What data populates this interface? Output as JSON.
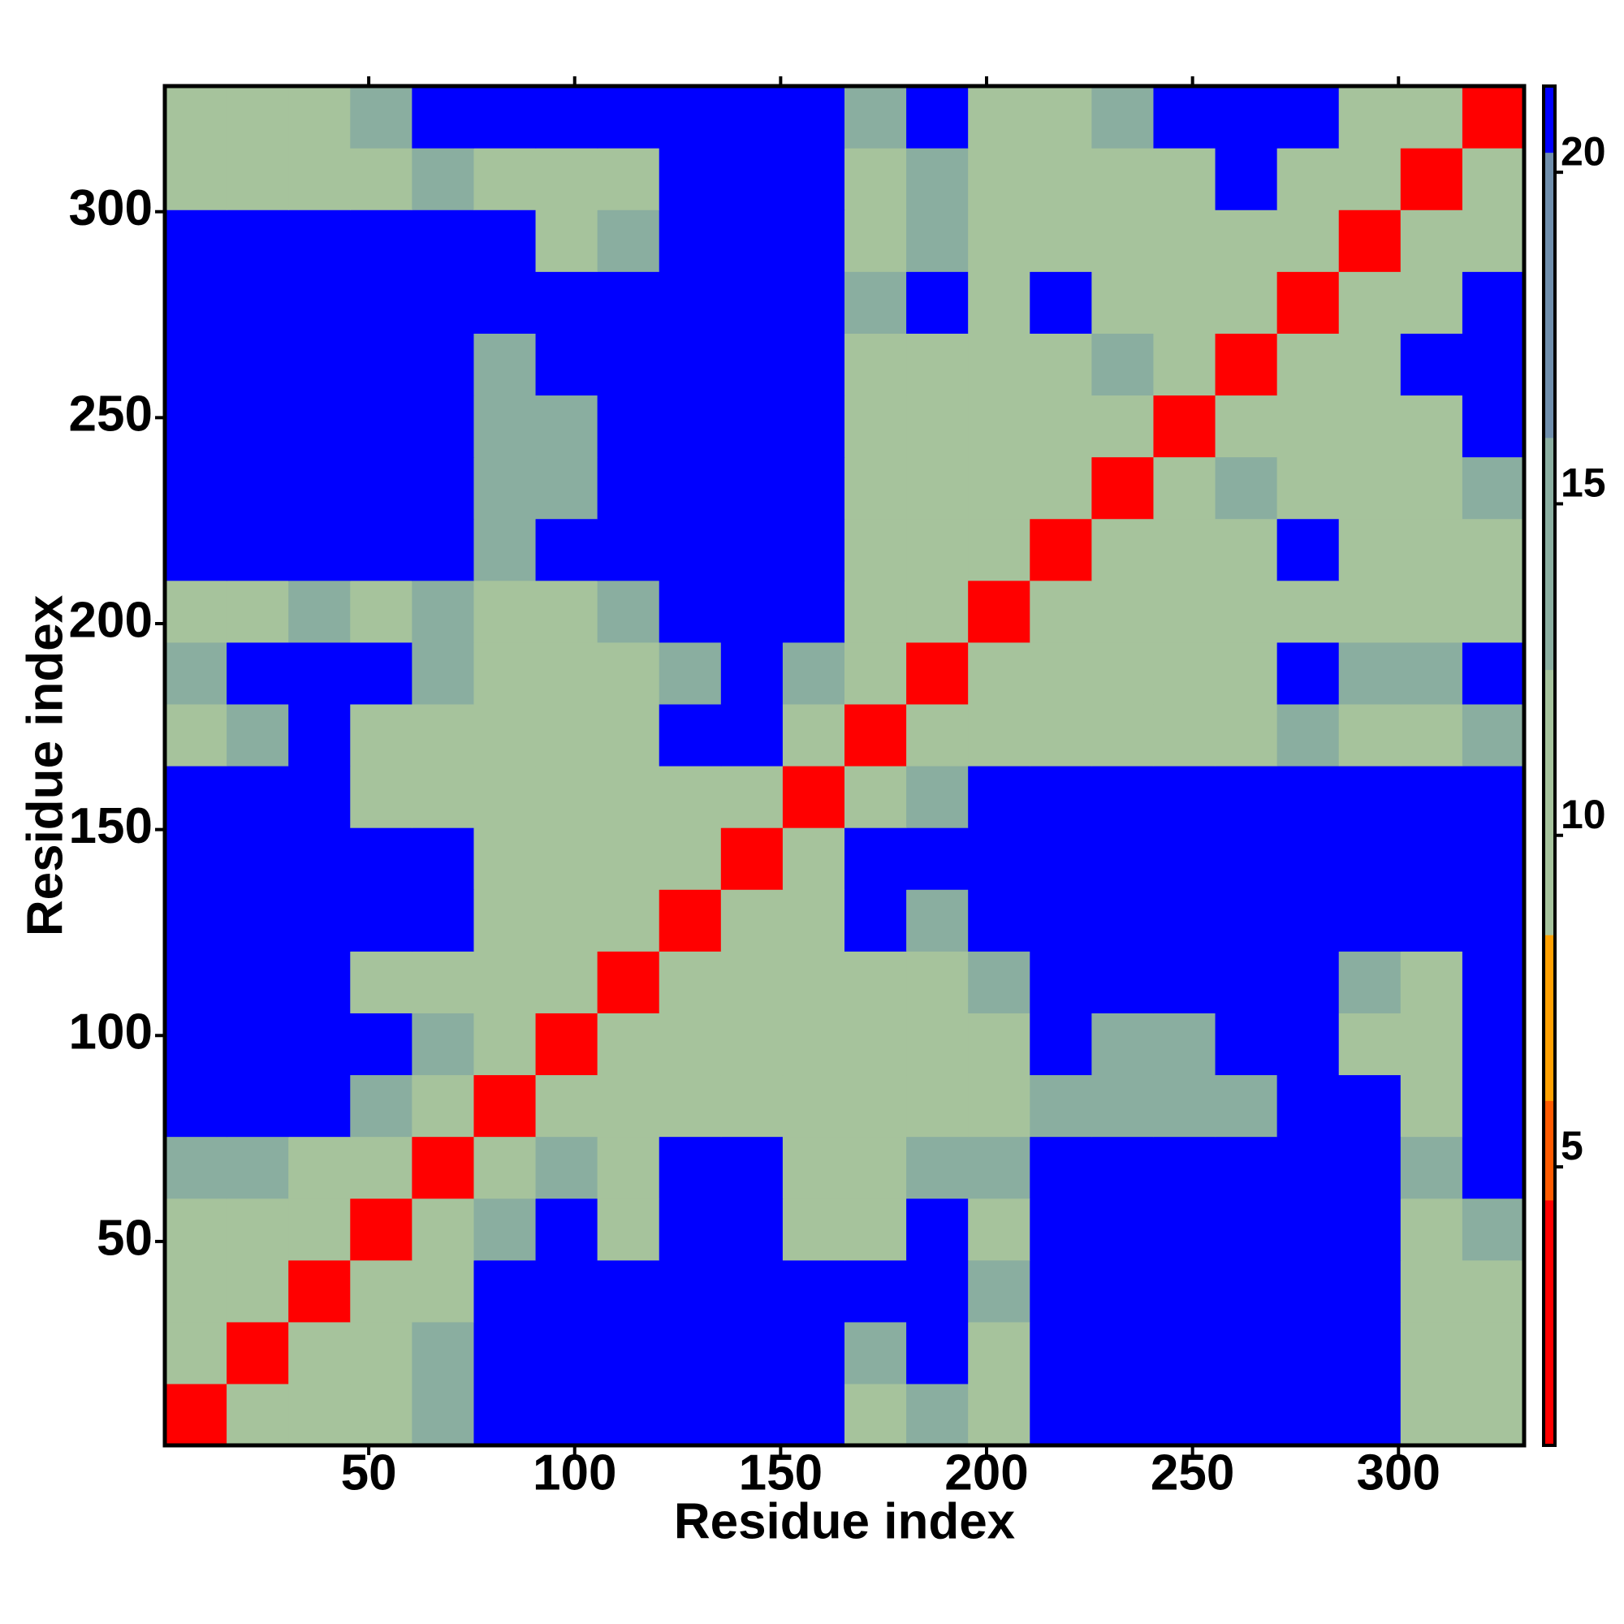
{
  "chart_data": {
    "type": "heatmap",
    "xlabel": "Residue index",
    "ylabel": "Residue index",
    "xbins": [
      0.5,
      15.5,
      30.5,
      45.5,
      60.5,
      75.5,
      90.5,
      105.5,
      120.5,
      135.5,
      150.5,
      165.5,
      180.5,
      195.5,
      210.5,
      225.5,
      240.5,
      255.5,
      270.5,
      285.5,
      300.5,
      315.5,
      330.5
    ],
    "ybins": [
      0.5,
      15.5,
      30.5,
      45.5,
      60.5,
      75.5,
      90.5,
      105.5,
      120.5,
      135.5,
      150.5,
      165.5,
      180.5,
      195.5,
      210.5,
      225.5,
      240.5,
      255.5,
      270.5,
      285.5,
      300.5,
      315.5,
      330.5
    ],
    "xlim": [
      0.5,
      330.5
    ],
    "ylim": [
      0.5,
      330.5
    ],
    "xticks": [
      50,
      100,
      150,
      200,
      250,
      300
    ],
    "yticks": [
      50,
      100,
      150,
      200,
      250,
      300
    ],
    "zlim": [
      0.8,
      21.3
    ],
    "zticks": [
      5,
      10,
      15,
      20
    ],
    "colorscale": [
      [
        0.8,
        "#ff0000"
      ],
      [
        4.5,
        "#ff5a00"
      ],
      [
        6,
        "#ffa000"
      ],
      [
        8.5,
        "#a6c39c"
      ],
      [
        12.5,
        "#8aaea0"
      ],
      [
        16,
        "#6f8eac"
      ],
      [
        20.3,
        "#0000ff"
      ]
    ],
    "z": [
      [
        3,
        10,
        11,
        12,
        14,
        21,
        21,
        21,
        21,
        21,
        21,
        12,
        13,
        12,
        21,
        21,
        21,
        21,
        21,
        21,
        12,
        12
      ],
      [
        10,
        3,
        10,
        11,
        14,
        21,
        21,
        21,
        21,
        21,
        21,
        13,
        21,
        12,
        21,
        21,
        21,
        21,
        21,
        21,
        12,
        11
      ],
      [
        11,
        10,
        3,
        10,
        12,
        21,
        21,
        21,
        21,
        21,
        21,
        21,
        21,
        13,
        21,
        21,
        21,
        21,
        21,
        21,
        12,
        12
      ],
      [
        12,
        11,
        10,
        3,
        11,
        13,
        21,
        12,
        21,
        21,
        12,
        12,
        21,
        12,
        21,
        21,
        21,
        21,
        21,
        21,
        12,
        13
      ],
      [
        14,
        14,
        12,
        11,
        3,
        11,
        13,
        11,
        21,
        21,
        11,
        11,
        13,
        13,
        21,
        21,
        21,
        21,
        21,
        21,
        13,
        21
      ],
      [
        21,
        21,
        21,
        13,
        11,
        3,
        10,
        10,
        11,
        12,
        12,
        12,
        11,
        11,
        13,
        14,
        14,
        15,
        21,
        21,
        12,
        21
      ],
      [
        21,
        21,
        21,
        21,
        13,
        10,
        3,
        10,
        12,
        12,
        12,
        12,
        12,
        12,
        21,
        13,
        15,
        21,
        21,
        12,
        12,
        21
      ],
      [
        21,
        21,
        21,
        12,
        11,
        10,
        10,
        3,
        10,
        12,
        10,
        11,
        12,
        13,
        21,
        21,
        21,
        21,
        21,
        13,
        12,
        21
      ],
      [
        21,
        21,
        21,
        21,
        21,
        11,
        12,
        10,
        3,
        10,
        10,
        21,
        13,
        21,
        21,
        21,
        21,
        21,
        21,
        21,
        21,
        21
      ],
      [
        21,
        21,
        21,
        21,
        21,
        12,
        12,
        12,
        10,
        3,
        10,
        21,
        21,
        21,
        21,
        21,
        21,
        21,
        21,
        21,
        21,
        21
      ],
      [
        21,
        21,
        21,
        12,
        11,
        12,
        12,
        10,
        10,
        10,
        3,
        11,
        13,
        21,
        21,
        21,
        21,
        21,
        21,
        21,
        21,
        21
      ],
      [
        12,
        13,
        21,
        12,
        11,
        12,
        12,
        11,
        21,
        21,
        11,
        3,
        10,
        11,
        12,
        12,
        12,
        12,
        13,
        12,
        12,
        13
      ],
      [
        13,
        21,
        21,
        21,
        13,
        11,
        12,
        12,
        13,
        21,
        13,
        10,
        3,
        10,
        10,
        11,
        12,
        12,
        21,
        13,
        13,
        21
      ],
      [
        12,
        12,
        13,
        12,
        13,
        11,
        12,
        13,
        21,
        21,
        21,
        11,
        10,
        3,
        10,
        11,
        12,
        12,
        12,
        12,
        12,
        12
      ],
      [
        21,
        21,
        21,
        21,
        21,
        13,
        21,
        21,
        21,
        21,
        21,
        12,
        10,
        10,
        3,
        10,
        11,
        12,
        21,
        12,
        12,
        12
      ],
      [
        21,
        21,
        21,
        21,
        21,
        14,
        13,
        21,
        21,
        21,
        21,
        12,
        11,
        11,
        10,
        3,
        11,
        13,
        12,
        11,
        12,
        13
      ],
      [
        21,
        21,
        21,
        21,
        21,
        14,
        15,
        21,
        21,
        21,
        21,
        12,
        12,
        12,
        11,
        11,
        3,
        10,
        11,
        11,
        12,
        21
      ],
      [
        21,
        21,
        21,
        21,
        21,
        15,
        21,
        21,
        21,
        21,
        21,
        12,
        12,
        12,
        12,
        13,
        10,
        3,
        10,
        11,
        21,
        21
      ],
      [
        21,
        21,
        21,
        21,
        21,
        21,
        21,
        21,
        21,
        21,
        21,
        13,
        21,
        12,
        21,
        12,
        11,
        10,
        3,
        10,
        12,
        21
      ],
      [
        21,
        21,
        21,
        21,
        21,
        21,
        12,
        13,
        21,
        21,
        21,
        12,
        13,
        12,
        12,
        11,
        11,
        11,
        10,
        3,
        10,
        12
      ],
      [
        12,
        12,
        12,
        12,
        13,
        12,
        12,
        12,
        21,
        21,
        21,
        12,
        13,
        12,
        12,
        12,
        12,
        21,
        12,
        10,
        3,
        10
      ],
      [
        12,
        11,
        12,
        13,
        21,
        21,
        21,
        21,
        21,
        21,
        21,
        13,
        21,
        12,
        12,
        13,
        21,
        21,
        21,
        12,
        10,
        3
      ]
    ]
  }
}
